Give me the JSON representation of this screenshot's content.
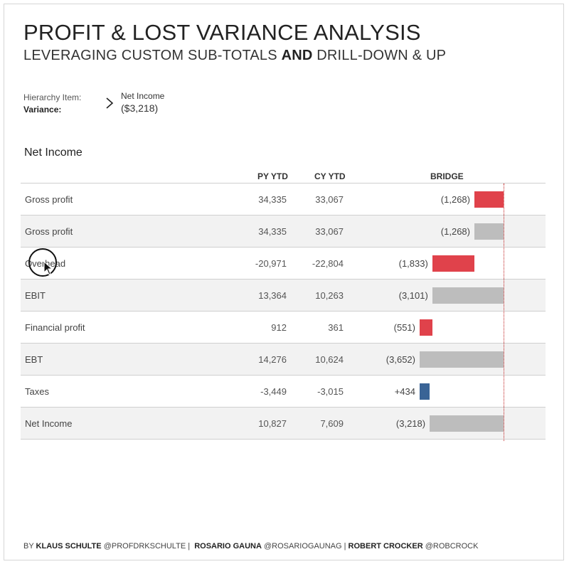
{
  "header": {
    "title": "PROFIT & LOST VARIANCE ANALYSIS",
    "subtitle_part1": "LEVERAGING CUSTOM SUB-TOTALS",
    "subtitle_bold": "AND",
    "subtitle_part2": "DRILL-DOWN & UP"
  },
  "info": {
    "hierarchy_label": "Hierarchy Item:",
    "variance_label": "Variance:",
    "hierarchy_value": "Net Income",
    "variance_value": "($3,218)"
  },
  "section_title": "Net Income",
  "columns": {
    "py": "PY YTD",
    "cy": "CY YTD",
    "bridge": "BRIDGE"
  },
  "colors": {
    "negative": "#e0424b",
    "positive": "#3a6496",
    "subtotal": "#bdbdbd"
  },
  "chart_data": {
    "type": "bar",
    "categories": [
      "Gross profit",
      "Gross profit",
      "Overhead",
      "EBIT",
      "Financial profit",
      "EBT",
      "Taxes",
      "Net Income"
    ],
    "py_ytd": [
      "34,335",
      "34,335",
      "-20,971",
      "13,364",
      "912",
      "14,276",
      "-3,449",
      "10,827"
    ],
    "cy_ytd": [
      "33,067",
      "33,067",
      "-22,804",
      "10,263",
      "361",
      "10,624",
      "-3,015",
      "7,609"
    ],
    "variance_labels": [
      "(1,268)",
      "(1,268)",
      "(1,833)",
      "(3,101)",
      "(551)",
      "(3,652)",
      "+434",
      "(3,218)"
    ],
    "bridge": [
      {
        "start": 0,
        "end": -1268,
        "kind": "negative"
      },
      {
        "start": 0,
        "end": -1268,
        "kind": "subtotal"
      },
      {
        "start": -1268,
        "end": -3101,
        "kind": "negative"
      },
      {
        "start": 0,
        "end": -3101,
        "kind": "subtotal"
      },
      {
        "start": -3101,
        "end": -3652,
        "kind": "negative"
      },
      {
        "start": 0,
        "end": -3652,
        "kind": "subtotal"
      },
      {
        "start": -3652,
        "end": -3218,
        "kind": "positive"
      },
      {
        "start": 0,
        "end": -3218,
        "kind": "subtotal"
      }
    ]
  },
  "footer": {
    "by": "BY",
    "author1": "KLAUS SCHULTE",
    "handle1": "@PROFDRKSCHULTE |",
    "author2": "ROSARIO GAUNA",
    "handle2": "@ROSARIOGAUNAG |",
    "author3": "ROBERT CROCKER",
    "handle3": "@ROBCROCK"
  }
}
